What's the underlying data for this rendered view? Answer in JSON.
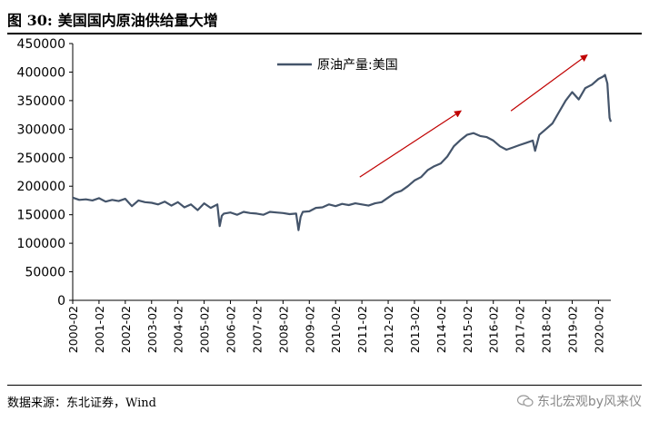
{
  "figure": {
    "label": "图 30:",
    "title": "美国国内原油供给量大增"
  },
  "source": "数据来源：东北证券，Wind",
  "watermark": "东北宏观by风来仪",
  "colors": {
    "line": "#44546a",
    "arrow": "#c00000"
  },
  "chart_data": {
    "type": "line",
    "title": "美国国内原油供给量大增",
    "xlabel": "",
    "ylabel": "",
    "ylim": [
      0,
      450000
    ],
    "yticks": [
      0,
      50000,
      100000,
      150000,
      200000,
      250000,
      300000,
      350000,
      400000,
      450000
    ],
    "ytick_labels": [
      "0",
      "50000",
      "100000",
      "150000",
      "200000",
      "250000",
      "300000",
      "350000",
      "400000",
      "450000"
    ],
    "xlim": [
      2000.08,
      2020.55
    ],
    "xtick_labels": [
      "2000-02",
      "2001-02",
      "2002-02",
      "2003-02",
      "2004-02",
      "2005-02",
      "2006-02",
      "2007-02",
      "2008-02",
      "2009-02",
      "2010-02",
      "2011-02",
      "2012-02",
      "2013-02",
      "2014-02",
      "2015-02",
      "2016-02",
      "2017-02",
      "2018-02",
      "2019-02",
      "2020-02"
    ],
    "grid": false,
    "legend_position": "top-center",
    "series": [
      {
        "name": "原油产量:美国",
        "x": [
          2000.08,
          2000.33,
          2000.58,
          2000.83,
          2001.08,
          2001.33,
          2001.58,
          2001.83,
          2002.08,
          2002.33,
          2002.58,
          2002.83,
          2003.08,
          2003.33,
          2003.58,
          2003.83,
          2004.08,
          2004.33,
          2004.58,
          2004.83,
          2005.08,
          2005.33,
          2005.58,
          2005.67,
          2005.75,
          2005.83,
          2006.08,
          2006.33,
          2006.58,
          2006.83,
          2007.08,
          2007.33,
          2007.58,
          2007.83,
          2008.08,
          2008.33,
          2008.58,
          2008.67,
          2008.75,
          2008.83,
          2009.08,
          2009.33,
          2009.58,
          2009.83,
          2010.08,
          2010.33,
          2010.58,
          2010.83,
          2011.08,
          2011.33,
          2011.58,
          2011.83,
          2012.08,
          2012.33,
          2012.58,
          2012.83,
          2013.08,
          2013.33,
          2013.58,
          2013.83,
          2014.08,
          2014.33,
          2014.58,
          2014.83,
          2015.08,
          2015.33,
          2015.58,
          2015.83,
          2016.08,
          2016.33,
          2016.58,
          2016.83,
          2017.08,
          2017.33,
          2017.58,
          2017.67,
          2017.83,
          2018.08,
          2018.33,
          2018.58,
          2018.83,
          2019.08,
          2019.33,
          2019.58,
          2019.83,
          2020.08,
          2020.25,
          2020.33,
          2020.42,
          2020.5,
          2020.55
        ],
        "values": [
          180000,
          176000,
          177000,
          175000,
          179000,
          173000,
          176000,
          174000,
          178000,
          165000,
          175000,
          172000,
          171000,
          168000,
          173000,
          166000,
          172000,
          163000,
          168000,
          158000,
          170000,
          162000,
          168000,
          130000,
          148000,
          152000,
          154000,
          150000,
          155000,
          153000,
          152000,
          150000,
          155000,
          154000,
          153000,
          151000,
          152000,
          123000,
          146000,
          155000,
          156000,
          162000,
          163000,
          168000,
          165000,
          169000,
          167000,
          170000,
          168000,
          166000,
          170000,
          172000,
          180000,
          188000,
          192000,
          200000,
          210000,
          216000,
          228000,
          235000,
          240000,
          252000,
          270000,
          281000,
          290000,
          293000,
          288000,
          286000,
          280000,
          270000,
          264000,
          268000,
          272000,
          276000,
          280000,
          262000,
          290000,
          300000,
          310000,
          330000,
          350000,
          365000,
          352000,
          372000,
          378000,
          388000,
          392000,
          395000,
          380000,
          320000,
          313000
        ]
      }
    ],
    "annotations": [
      {
        "type": "arrow",
        "from": [
          2011.0,
          216000
        ],
        "to": [
          2014.85,
          332000
        ]
      },
      {
        "type": "arrow",
        "from": [
          2016.75,
          332000
        ],
        "to": [
          2019.65,
          430000
        ]
      }
    ]
  }
}
